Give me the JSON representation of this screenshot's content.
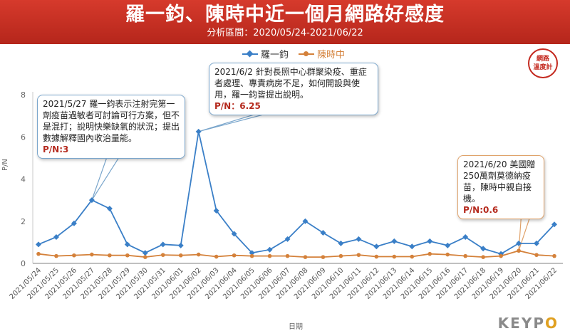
{
  "header": {
    "title": "羅一鈞、陳時中近一個月網路好感度",
    "subtitle": "分析區間：2020/05/24-2021/06/22"
  },
  "badge": {
    "line1": "網路",
    "line2": "溫度計"
  },
  "brand": {
    "part1": "KEYP",
    "part2": "O"
  },
  "colors": {
    "series_a": "#3a7fc7",
    "series_b": "#d4813a",
    "header_bg": "#c42a20"
  },
  "callouts": [
    {
      "text": "2021/5/27 羅一鈞表示注射完第一劑疫苗過敏者可討論可行方案，但不是混打；說明快樂缺氧的狀況；提出數據解釋國內收治量能。",
      "pn": "P/N:3"
    },
    {
      "text": "2021/6/2 針對長照中心群聚染疫、重症者處理、專責病房不足，如何開設與使用，羅一鈞皆提出說明。",
      "pn": "P/N：6.25"
    },
    {
      "text": "2021/6/20 美國贈250萬劑莫德納疫苗，陳時中親自接機。",
      "pn": "P/N:0.6"
    }
  ],
  "chart_data": {
    "type": "line",
    "title": "羅一鈞、陳時中近一個月網路好感度",
    "subtitle": "分析區間：2020/05/24-2021/06/22",
    "xlabel": "日期",
    "ylabel": "P/N",
    "ylim": [
      0,
      8
    ],
    "yticks": [
      "0",
      "2",
      "4",
      "6",
      "8"
    ],
    "grid": false,
    "legend_position": "top-center",
    "categories": [
      "2021/05/24",
      "2021/05/25",
      "2021/05/26",
      "2021/05/27",
      "2021/05/28",
      "2021/05/29",
      "2021/05/30",
      "2021/05/31",
      "2021/06/01",
      "2021/06/02",
      "2021/06/03",
      "2021/06/04",
      "2021/06/05",
      "2021/06/06",
      "2021/06/07",
      "2021/06/08",
      "2021/06/09",
      "2021/06/10",
      "2021/06/11",
      "2021/06/12",
      "2021/06/13",
      "2021/06/14",
      "2021/06/15",
      "2021/06/16",
      "2021/06/17",
      "2021/06/18",
      "2021/06/19",
      "2021/06/20",
      "2021/06/21",
      "2021/06/22"
    ],
    "series": [
      {
        "name": "羅一鈞",
        "color": "#3a7fc7",
        "marker": "diamond",
        "values": [
          0.9,
          1.25,
          1.9,
          3.0,
          2.6,
          0.9,
          0.5,
          0.9,
          0.85,
          6.25,
          2.5,
          1.4,
          0.5,
          0.65,
          1.15,
          2.0,
          1.45,
          0.95,
          1.15,
          0.8,
          1.05,
          0.8,
          1.05,
          0.85,
          1.25,
          0.7,
          0.45,
          0.95,
          0.95,
          1.85
        ]
      },
      {
        "name": "陳時中",
        "color": "#d4813a",
        "marker": "circle",
        "values": [
          0.45,
          0.35,
          0.38,
          0.42,
          0.38,
          0.38,
          0.3,
          0.4,
          0.38,
          0.42,
          0.32,
          0.38,
          0.35,
          0.35,
          0.35,
          0.3,
          0.3,
          0.35,
          0.4,
          0.32,
          0.32,
          0.32,
          0.45,
          0.42,
          0.35,
          0.3,
          0.35,
          0.6,
          0.4,
          0.35
        ]
      }
    ]
  }
}
